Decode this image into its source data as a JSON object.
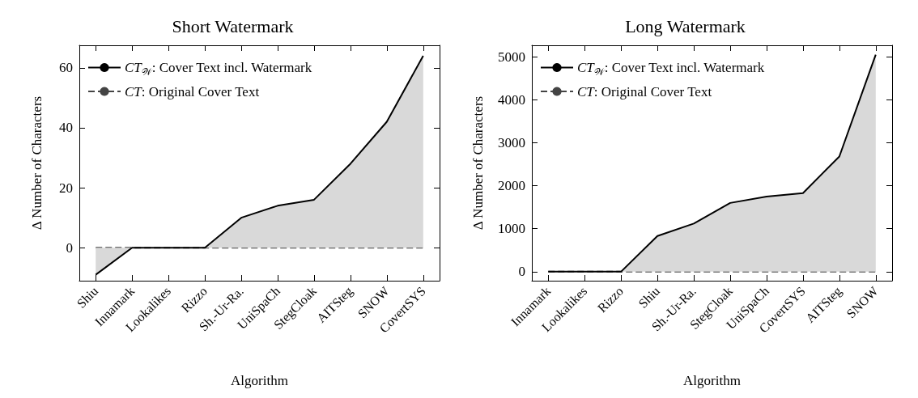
{
  "chart_data": [
    {
      "type": "area",
      "title": "Short Watermark",
      "xlabel": "Algorithm",
      "ylabel": "Δ Number of Characters",
      "categories": [
        "Shiu",
        "Innamark",
        "Lookalikes",
        "Rizzo",
        "Sh.-Ur-Ra.",
        "UniSpaCh",
        "StegCloak",
        "AITSteg",
        "SNOW",
        "CovertSYS"
      ],
      "series": [
        {
          "name": "CT$_{𝒲}$: Cover Text incl. Watermark",
          "type": "area",
          "color": "#000000",
          "line_style": "solid",
          "values": [
            -9,
            0,
            0,
            0,
            10,
            14,
            16,
            28,
            42,
            64
          ]
        },
        {
          "name": "CT: Original Cover Text",
          "type": "line",
          "color": "#444444",
          "line_style": "dashed",
          "values": [
            0,
            0,
            0,
            0,
            0,
            0,
            0,
            0,
            0,
            0
          ]
        }
      ],
      "ylim": [
        -11,
        67.5
      ],
      "yticks": [
        0,
        20,
        40,
        60
      ],
      "legend": "top left",
      "grid": false,
      "marker": "none"
    },
    {
      "type": "area",
      "title": "Long Watermark",
      "xlabel": "Algorithm",
      "ylabel": "Δ Number of Characters",
      "categories": [
        "Innamark",
        "Lookalikes",
        "Rizzo",
        "Shiu",
        "Sh.-Ur-Ra.",
        "StegCloak",
        "UniSpaCh",
        "CovertSYS",
        "AITSteg",
        "SNOW"
      ],
      "series": [
        {
          "name": "CT$_{𝒲}$: Cover Text incl. Watermark",
          "type": "area",
          "color": "#000000",
          "line_style": "solid",
          "values": [
            0,
            0,
            0,
            830,
            1120,
            1600,
            1750,
            1830,
            2680,
            5050
          ]
        },
        {
          "name": "CT: Original Cover Text",
          "type": "line",
          "color": "#444444",
          "line_style": "dashed",
          "values": [
            0,
            0,
            0,
            0,
            0,
            0,
            0,
            0,
            0,
            0
          ]
        }
      ],
      "ylim": [
        -210,
        5270
      ],
      "yticks": [
        0,
        1000,
        2000,
        3000,
        4000,
        5000
      ],
      "legend": "top left",
      "grid": false,
      "marker": "none"
    }
  ]
}
